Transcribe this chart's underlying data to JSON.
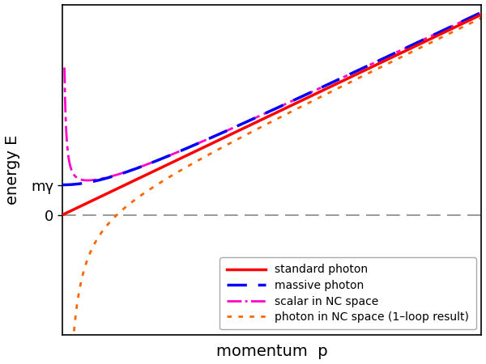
{
  "title": "",
  "xlabel": "momentum  p",
  "ylabel": "energy E",
  "m_gamma": 0.15,
  "p_min": 0.0,
  "p_max": 1.0,
  "e_min": -0.6,
  "e_max": 1.05,
  "colors": {
    "standard": "#ff0000",
    "massive": "#0000ff",
    "scalar_nc": "#ff00cc",
    "photon_nc": "#ff6600"
  },
  "legend_labels": [
    "standard photon",
    "massive photon",
    "scalar in NC space",
    "photon in NC space (1–loop result)"
  ],
  "k_scalar": 0.06,
  "c_photon_nc": 0.13,
  "background_color": "#ffffff",
  "axis_color": "#000000",
  "zero_line_color": "#888888"
}
